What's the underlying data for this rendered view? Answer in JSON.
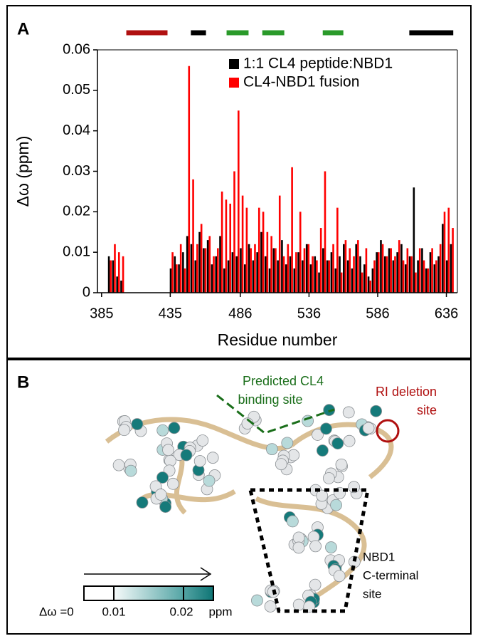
{
  "chart_data": {
    "type": "bar",
    "label": "A",
    "y_label": "Δω (ppm)",
    "x_label": "Residue number",
    "xlim": [
      382,
      644
    ],
    "xticks": [
      385,
      435,
      486,
      536,
      586,
      636
    ],
    "ylim": [
      0,
      0.06
    ],
    "yticks": [
      0,
      0.01,
      0.02,
      0.03,
      0.04,
      0.05,
      0.06
    ],
    "legend": "upper right",
    "x": [
      391,
      394,
      397,
      400,
      403,
      406,
      409,
      412,
      415,
      418,
      421,
      424,
      427,
      430,
      433,
      436,
      439,
      442,
      445,
      448,
      451,
      454,
      457,
      460,
      463,
      466,
      469,
      472,
      475,
      478,
      481,
      484,
      487,
      490,
      493,
      496,
      499,
      502,
      505,
      508,
      511,
      514,
      517,
      520,
      523,
      526,
      529,
      532,
      535,
      538,
      541,
      544,
      547,
      550,
      553,
      556,
      559,
      562,
      565,
      568,
      571,
      574,
      577,
      580,
      583,
      586,
      589,
      592,
      595,
      598,
      601,
      604,
      607,
      610,
      613,
      616,
      619,
      622,
      625,
      628,
      631,
      634,
      637,
      640
    ],
    "series": [
      {
        "name": "1:1 CL4 peptide:NBD1",
        "color": "#000000",
        "values": [
          0.009,
          0.008,
          0.004,
          0.003,
          null,
          null,
          null,
          null,
          null,
          null,
          null,
          null,
          null,
          null,
          null,
          0.006,
          0.009,
          0.007,
          0.01,
          0.014,
          0.012,
          0.008,
          0.015,
          0.011,
          0.013,
          0.007,
          0.009,
          0.014,
          0.006,
          0.008,
          0.01,
          0.009,
          0.011,
          0.007,
          0.012,
          0.008,
          0.01,
          0.015,
          0.009,
          0.006,
          0.011,
          0.008,
          0.013,
          0.007,
          0.009,
          0.006,
          0.01,
          0.008,
          0.012,
          0.007,
          0.009,
          0.005,
          0.011,
          0.008,
          0.01,
          0.006,
          0.009,
          0.012,
          0.008,
          0.006,
          0.012,
          0.009,
          0.007,
          0.004,
          0.006,
          0.01,
          0.013,
          0.009,
          0.011,
          0.008,
          0.01,
          0.012,
          0.007,
          0.009,
          0.026,
          0.008,
          0.011,
          0.006,
          0.01,
          0.007,
          0.009,
          0.017,
          0.008,
          0.012
        ]
      },
      {
        "name": "CL4-NBD1 fusion",
        "color": "#ff0000",
        "values": [
          0.008,
          0.012,
          0.01,
          0.009,
          null,
          null,
          null,
          null,
          null,
          null,
          null,
          null,
          null,
          null,
          null,
          0.01,
          0.007,
          0.012,
          0.006,
          0.056,
          0.028,
          0.012,
          0.017,
          0.011,
          0.014,
          0.009,
          0.011,
          0.025,
          0.023,
          0.022,
          0.03,
          0.045,
          0.024,
          0.021,
          0.011,
          0.012,
          0.021,
          0.02,
          0.015,
          0.014,
          0.011,
          0.024,
          0.009,
          0.012,
          0.031,
          0.01,
          0.02,
          0.011,
          0.012,
          0.009,
          0.008,
          0.016,
          0.03,
          0.008,
          0.012,
          0.021,
          0.005,
          0.013,
          0.011,
          0.009,
          0.013,
          0.005,
          0.011,
          0.003,
          0.008,
          0.01,
          0.012,
          0.009,
          0.011,
          0.009,
          0.013,
          0.008,
          0.011,
          0.009,
          0.005,
          0.011,
          0.008,
          0.006,
          0.011,
          0.008,
          0.012,
          0.02,
          0.021,
          0.016
        ]
      }
    ],
    "segments": [
      {
        "color": "#b01010",
        "range": [
          403,
          433
        ]
      },
      {
        "color": "#000000",
        "range": [
          450,
          461
        ]
      },
      {
        "color": "#2a9a2a",
        "range": [
          476,
          492
        ]
      },
      {
        "color": "#2a9a2a",
        "range": [
          502,
          518
        ]
      },
      {
        "color": "#2a9a2a",
        "range": [
          546,
          561
        ]
      },
      {
        "color": "#000000",
        "range": [
          609,
          641
        ]
      }
    ]
  },
  "panel_b": {
    "label": "B",
    "predicted_site": [
      "Predicted CL4",
      "binding  site"
    ],
    "ri_site": [
      "RI deletion",
      "site"
    ],
    "c_terminal_site": [
      "NBD1",
      "C-terminal",
      "site"
    ],
    "colorbar": {
      "prefix": "Δω =0",
      "mid": "0.01",
      "high": "0.02",
      "unit": "ppm"
    }
  }
}
